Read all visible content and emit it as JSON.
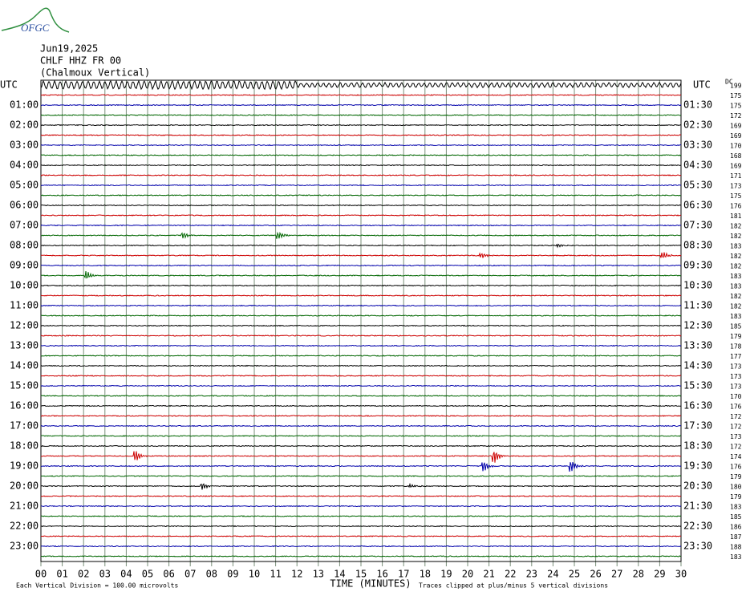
{
  "header": {
    "logo": "OFGC",
    "date": "Jun19,2025",
    "station": "CHLF HHZ FR 00",
    "location": "(Chalmoux Vertical)"
  },
  "chart_data": {
    "type": "helicorder",
    "left_axis_title": "UTC",
    "right_axis_title": "UTC",
    "dc_label": "DC",
    "left_labels": [
      "01:00",
      "02:00",
      "03:00",
      "04:00",
      "05:00",
      "06:00",
      "07:00",
      "08:00",
      "09:00",
      "10:00",
      "11:00",
      "12:00",
      "13:00",
      "14:00",
      "15:00",
      "16:00",
      "17:00",
      "18:00",
      "19:00",
      "20:00",
      "21:00",
      "22:00",
      "23:00"
    ],
    "right_labels": [
      "01:30",
      "02:30",
      "03:30",
      "04:30",
      "05:30",
      "06:30",
      "07:30",
      "08:30",
      "09:30",
      "10:30",
      "11:30",
      "12:30",
      "13:30",
      "14:30",
      "15:30",
      "16:30",
      "17:30",
      "18:30",
      "19:30",
      "20:30",
      "21:30",
      "22:30",
      "23:30"
    ],
    "dc_values": [
      199,
      175,
      175,
      172,
      169,
      169,
      170,
      168,
      169,
      171,
      173,
      175,
      176,
      181,
      182,
      182,
      183,
      182,
      182,
      183,
      183,
      182,
      182,
      183,
      185,
      179,
      178,
      177,
      173,
      173,
      173,
      170,
      176,
      172,
      172,
      173,
      172,
      174,
      176,
      179,
      180,
      179,
      183,
      185,
      186,
      187,
      188,
      183
    ],
    "xlim": [
      0,
      30
    ],
    "xticks": [
      {
        "value": 0,
        "label": "00"
      },
      {
        "value": 1,
        "label": "01"
      },
      {
        "value": 2,
        "label": "02"
      },
      {
        "value": 3,
        "label": "03"
      },
      {
        "value": 4,
        "label": "04"
      },
      {
        "value": 5,
        "label": "05"
      },
      {
        "value": 6,
        "label": "06"
      },
      {
        "value": 7,
        "label": "07"
      },
      {
        "value": 8,
        "label": "08"
      },
      {
        "value": 9,
        "label": "09"
      },
      10,
      11,
      12,
      13,
      14,
      15,
      16,
      17,
      18,
      19,
      20,
      21,
      22,
      23,
      24,
      25,
      26,
      27,
      28,
      29,
      30
    ],
    "xlabel": "TIME (MINUTES)",
    "scale_note": "Each Vertical Division =  100.00 microvolts",
    "clip_note": "Traces clipped at plus/minus 5 vertical divisions",
    "trace_colors": [
      "#000000",
      "#cc0000",
      "#0000aa",
      "#006600"
    ],
    "grid_color": "#7a8f7a"
  }
}
